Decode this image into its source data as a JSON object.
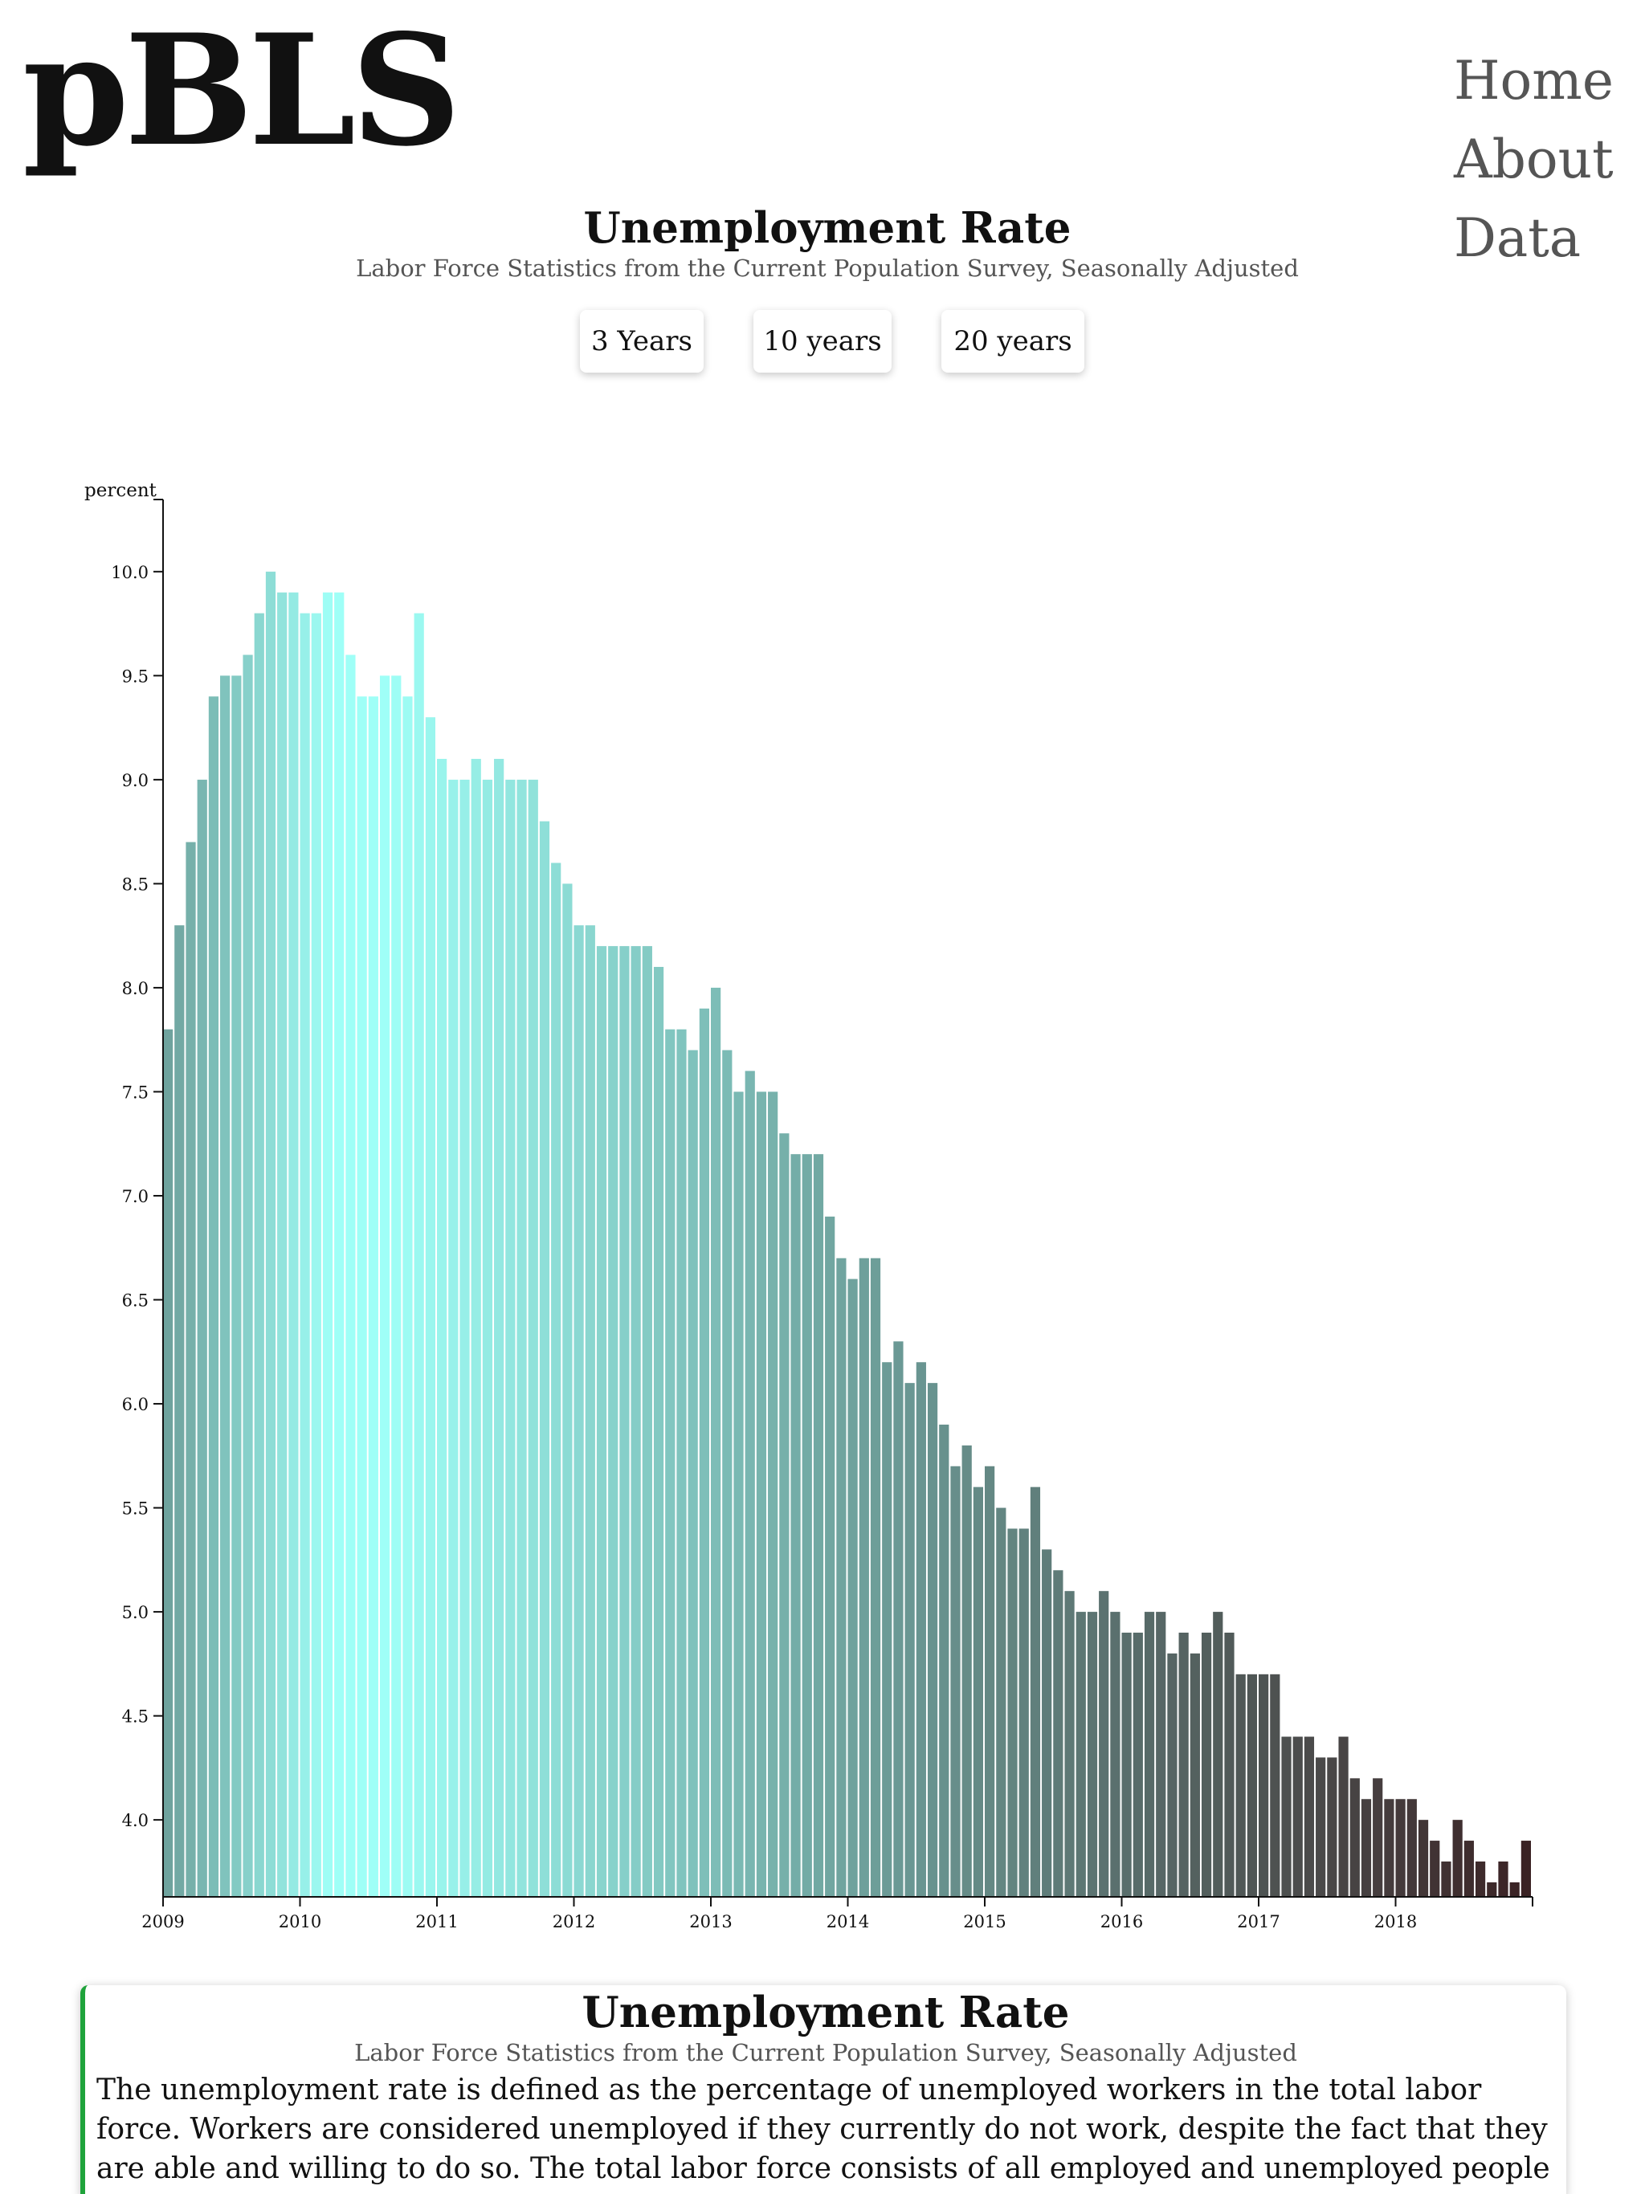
{
  "brand": {
    "logo": "pBLS"
  },
  "nav": {
    "items": [
      "Home",
      "About",
      "Data"
    ]
  },
  "header": {
    "title": "Unemployment Rate",
    "subtitle": "Labor Force Statistics from the Current Population Survey, Seasonally Adjusted"
  },
  "range_buttons": [
    "3 Years",
    "10 years",
    "20 years"
  ],
  "colors": {
    "bar_start": "#9ffff7",
    "bar_mid": "#6fa39e",
    "bar_end": "#3a2224",
    "card_accent": "#1fa33b"
  },
  "chart_data": {
    "type": "bar",
    "ylabel": "percent",
    "xlabel": "",
    "ylim": [
      3.63,
      10.2
    ],
    "yticks": [
      4.0,
      4.5,
      5.0,
      5.5,
      6.0,
      6.5,
      7.0,
      7.5,
      8.0,
      8.5,
      9.0,
      9.5,
      10.0
    ],
    "xticks": [
      "2009",
      "2010",
      "2011",
      "2012",
      "2013",
      "2014",
      "2015",
      "2016",
      "2017",
      "2018"
    ],
    "x_start": "2009-01",
    "x_end": "2018-12",
    "grid": false,
    "values": [
      7.8,
      8.3,
      8.7,
      9.0,
      9.4,
      9.5,
      9.5,
      9.6,
      9.8,
      10.0,
      9.9,
      9.9,
      9.8,
      9.8,
      9.9,
      9.9,
      9.6,
      9.4,
      9.4,
      9.5,
      9.5,
      9.4,
      9.8,
      9.3,
      9.1,
      9.0,
      9.0,
      9.1,
      9.0,
      9.1,
      9.0,
      9.0,
      9.0,
      8.8,
      8.6,
      8.5,
      8.3,
      8.3,
      8.2,
      8.2,
      8.2,
      8.2,
      8.2,
      8.1,
      7.8,
      7.8,
      7.7,
      7.9,
      8.0,
      7.7,
      7.5,
      7.6,
      7.5,
      7.5,
      7.3,
      7.2,
      7.2,
      7.2,
      6.9,
      6.7,
      6.6,
      6.7,
      6.7,
      6.2,
      6.3,
      6.1,
      6.2,
      6.1,
      5.9,
      5.7,
      5.8,
      5.6,
      5.7,
      5.5,
      5.4,
      5.4,
      5.6,
      5.3,
      5.2,
      5.1,
      5.0,
      5.0,
      5.1,
      5.0,
      4.9,
      4.9,
      5.0,
      5.0,
      4.8,
      4.9,
      4.8,
      4.9,
      5.0,
      4.9,
      4.7,
      4.7,
      4.7,
      4.7,
      4.4,
      4.4,
      4.4,
      4.3,
      4.3,
      4.4,
      4.2,
      4.1,
      4.2,
      4.1,
      4.1,
      4.1,
      4.0,
      3.9,
      3.8,
      4.0,
      3.9,
      3.8,
      3.7,
      3.8,
      3.7,
      3.9
    ]
  },
  "info_card": {
    "title": "Unemployment Rate",
    "subtitle": "Labor Force Statistics from the Current Population Survey, Seasonally Adjusted",
    "description": "The unemployment rate is defined as the percentage of unemployed workers in the total labor force. Workers are considered unemployed if they currently do not work, despite the fact that they are able and willing to do so. The total labor force consists of all employed and unemployed people within an economy."
  }
}
